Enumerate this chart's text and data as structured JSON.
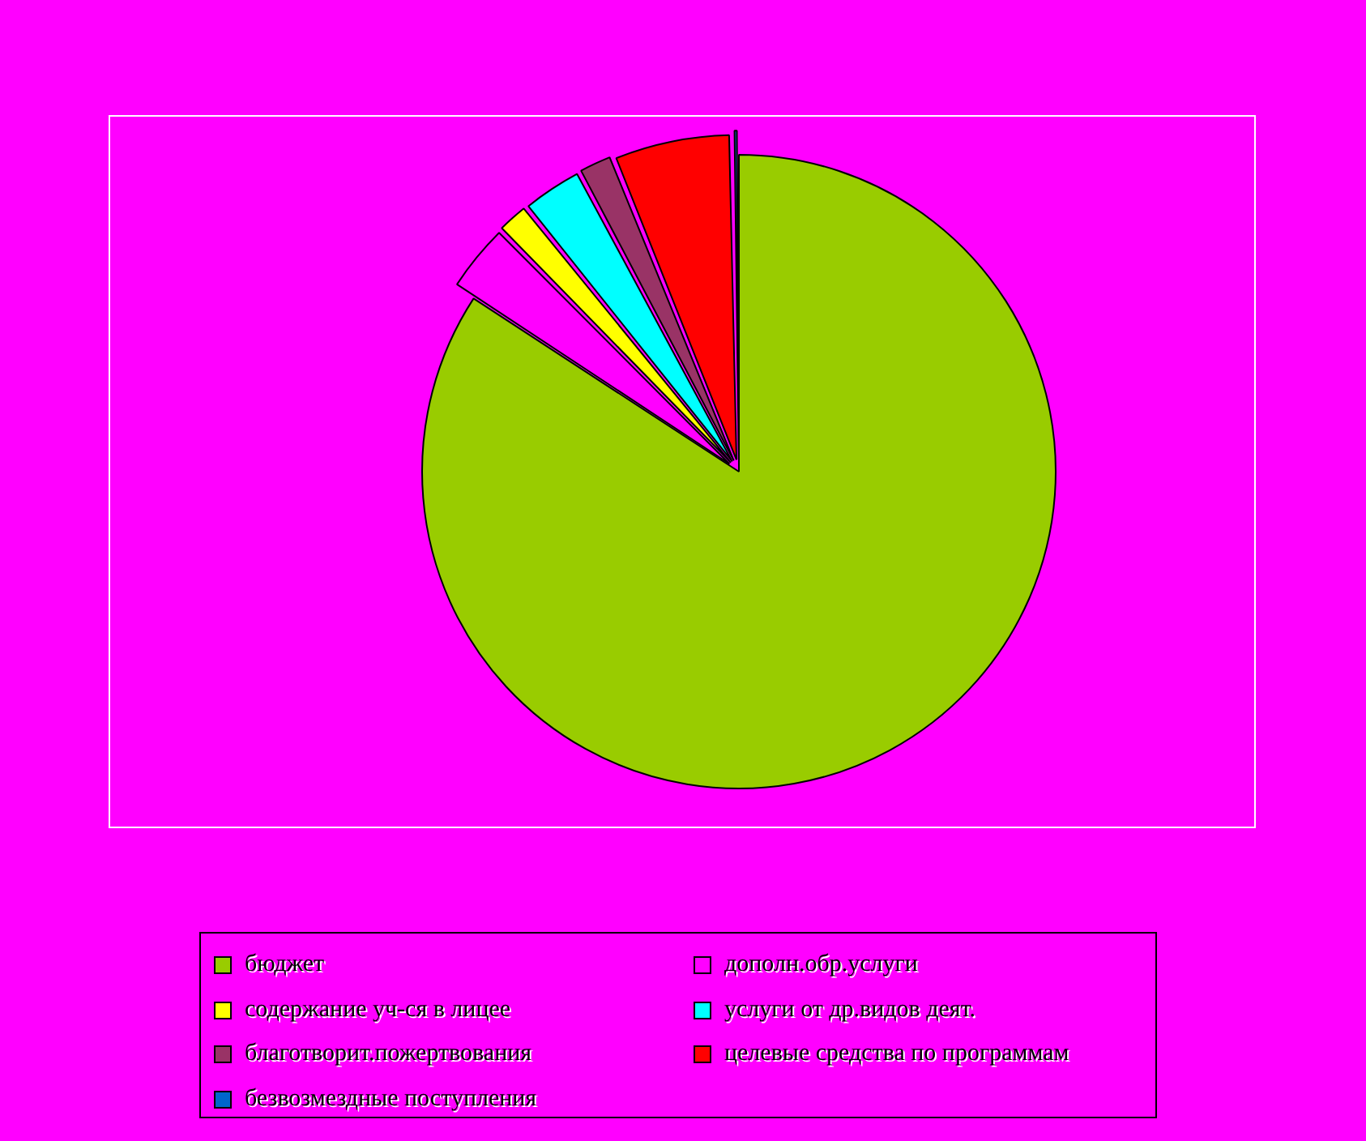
{
  "chart_data": {
    "type": "pie",
    "categories": [
      "бюджет",
      "дополн.обр.услуги",
      "содержание уч-ся в лицее",
      "услуги от др.видов деят.",
      "благотворит.пожертвования",
      "целевые средства по программам",
      "безвозмездные поступления"
    ],
    "values": [
      84.2,
      3.4,
      1.6,
      3.0,
      1.7,
      5.8,
      0.3
    ],
    "colors": [
      "#99cc00",
      "#ff00ff",
      "#ffff00",
      "#00ffff",
      "#993366",
      "#ff0000",
      "#0066cc"
    ],
    "legend": "bottom"
  }
}
